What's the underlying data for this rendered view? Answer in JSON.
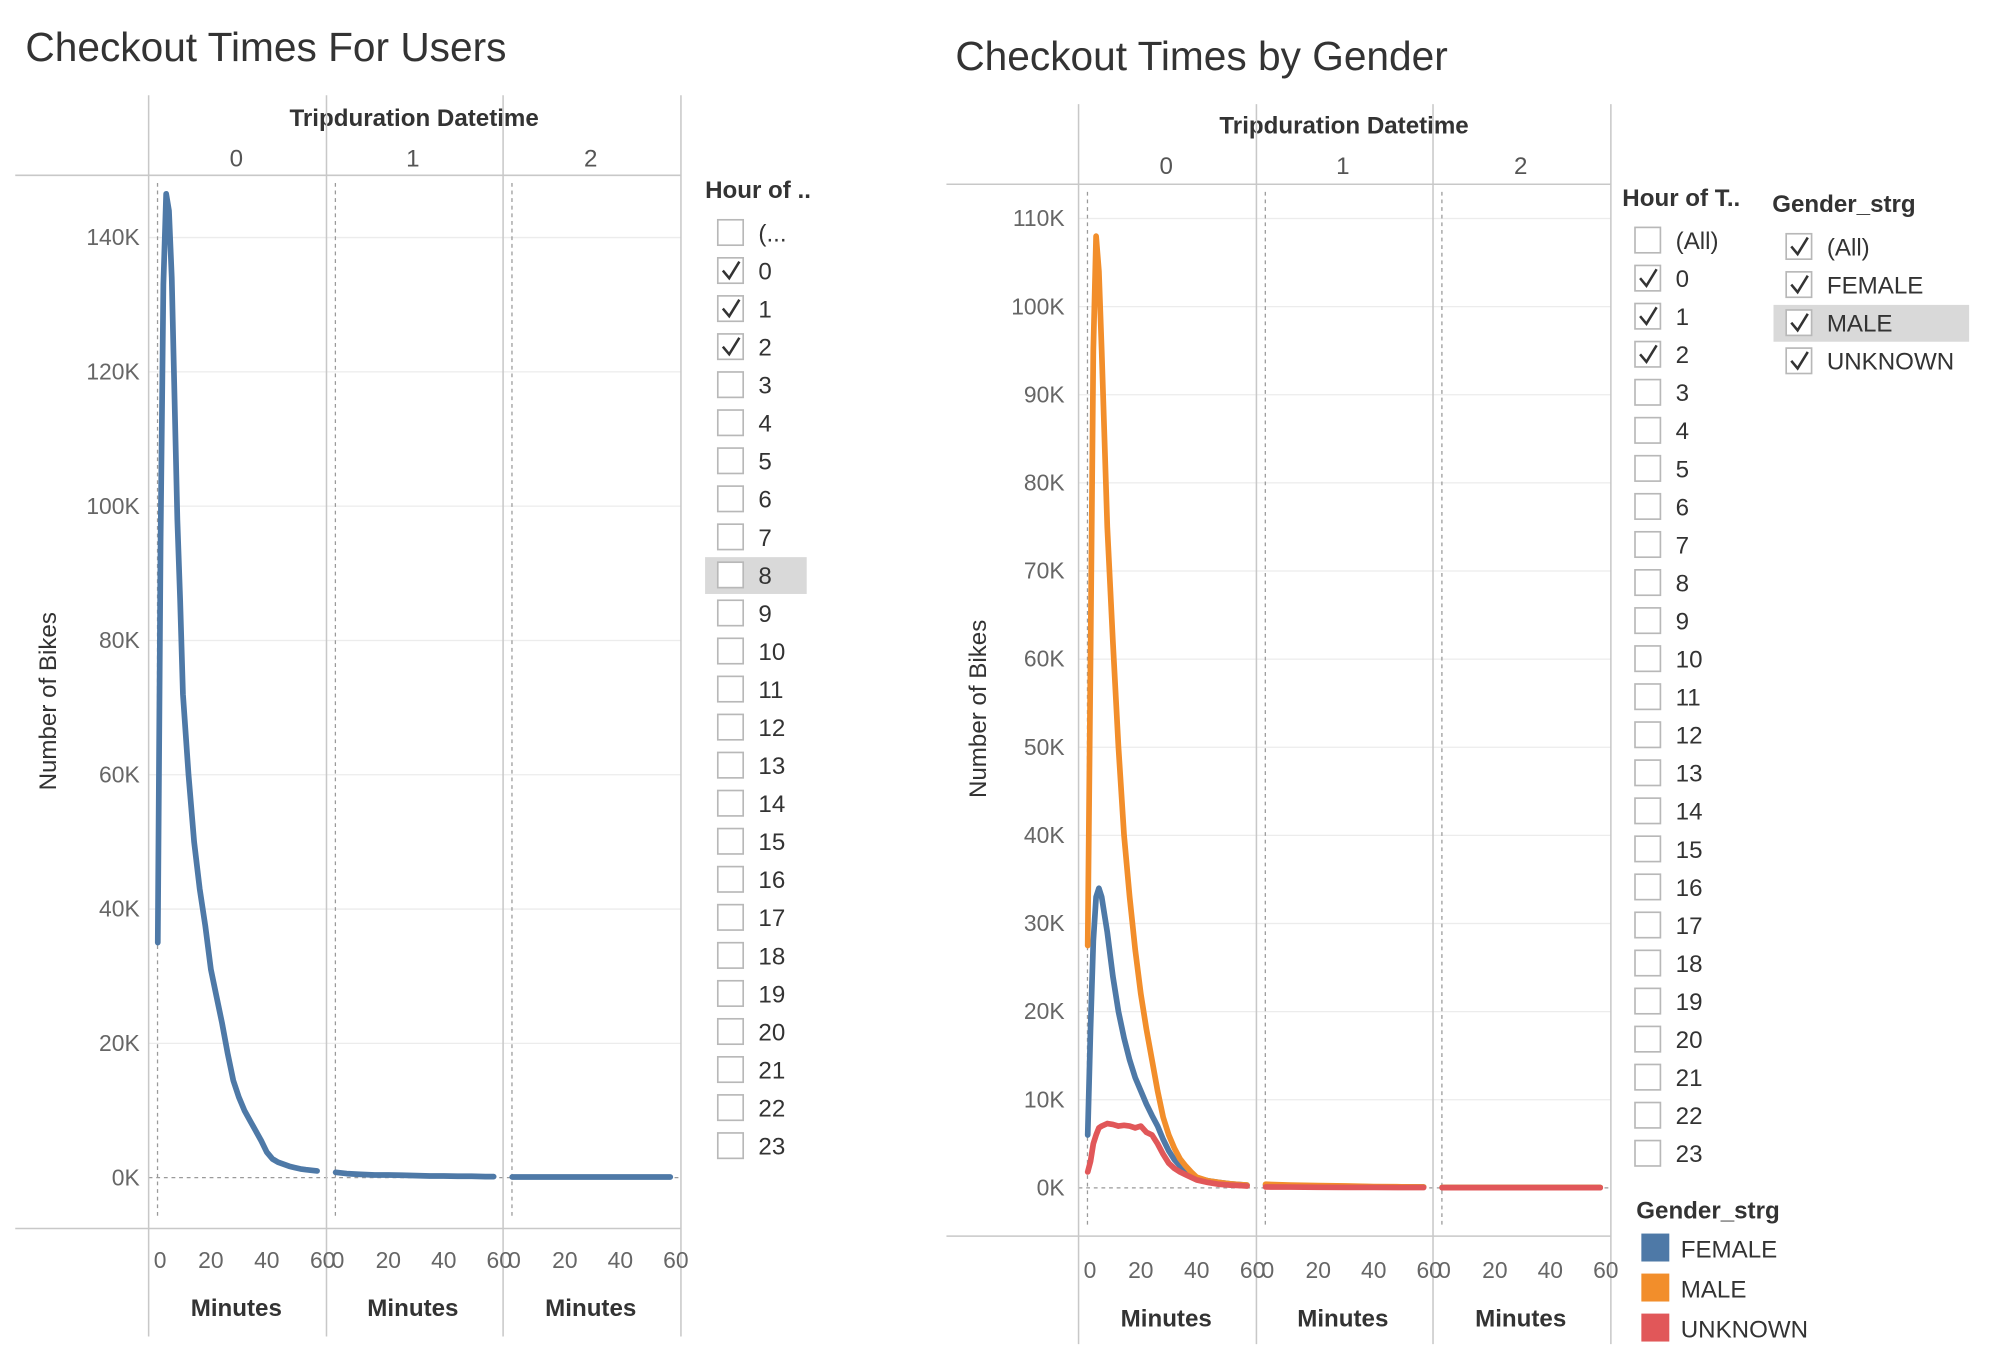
{
  "chart_data": [
    {
      "type": "line",
      "title": "Checkout Times For Users",
      "column_header": "Tripduration Datetime",
      "panes": [
        "0",
        "1",
        "2"
      ],
      "xlabel": "Minutes",
      "ylabel": "Number of Bikes",
      "xticks": [
        "0",
        "20",
        "40",
        "60"
      ],
      "yticks": [
        "0K",
        "20K",
        "40K",
        "60K",
        "80K",
        "100K",
        "120K",
        "140K"
      ],
      "ylim": [
        0,
        150000
      ],
      "xlim": [
        0,
        60
      ],
      "series": [
        {
          "color": "#4e79a7",
          "panes": [
            {
              "x": [
                1,
                2,
                3,
                4,
                5,
                6,
                7,
                8,
                9,
                10,
                12,
                14,
                16,
                18,
                20,
                22,
                24,
                26,
                28,
                30,
                32,
                34,
                36,
                38,
                40,
                42,
                44,
                46,
                48,
                50,
                52,
                54,
                56,
                58
              ],
              "y": [
                35000,
                95000,
                133000,
                146500,
                144000,
                134000,
                116000,
                98000,
                86000,
                72000,
                60000,
                50000,
                43000,
                37500,
                31000,
                27000,
                23000,
                18500,
                14500,
                12000,
                10000,
                8500,
                7000,
                5500,
                3800,
                2800,
                2300,
                2000,
                1700,
                1500,
                1300,
                1200,
                1100,
                1000
              ]
            },
            {
              "x": [
                1,
                5,
                10,
                15,
                20,
                25,
                30,
                35,
                40,
                45,
                50,
                55,
                58
              ],
              "y": [
                800,
                600,
                500,
                400,
                400,
                350,
                300,
                250,
                250,
                200,
                200,
                150,
                150
              ]
            },
            {
              "x": [
                1,
                10,
                20,
                30,
                40,
                50,
                58
              ],
              "y": [
                100,
                100,
                100,
                100,
                100,
                100,
                100
              ]
            }
          ]
        }
      ],
      "filter": {
        "title": "Hour of ..",
        "items": [
          {
            "label": "(...",
            "checked": false,
            "highlighted": false
          },
          {
            "label": "0",
            "checked": true,
            "highlighted": false
          },
          {
            "label": "1",
            "checked": true,
            "highlighted": false
          },
          {
            "label": "2",
            "checked": true,
            "highlighted": false
          },
          {
            "label": "3",
            "checked": false,
            "highlighted": false
          },
          {
            "label": "4",
            "checked": false,
            "highlighted": false
          },
          {
            "label": "5",
            "checked": false,
            "highlighted": false
          },
          {
            "label": "6",
            "checked": false,
            "highlighted": false
          },
          {
            "label": "7",
            "checked": false,
            "highlighted": false
          },
          {
            "label": "8",
            "checked": false,
            "highlighted": true
          },
          {
            "label": "9",
            "checked": false,
            "highlighted": false
          },
          {
            "label": "10",
            "checked": false,
            "highlighted": false
          },
          {
            "label": "11",
            "checked": false,
            "highlighted": false
          },
          {
            "label": "12",
            "checked": false,
            "highlighted": false
          },
          {
            "label": "13",
            "checked": false,
            "highlighted": false
          },
          {
            "label": "14",
            "checked": false,
            "highlighted": false
          },
          {
            "label": "15",
            "checked": false,
            "highlighted": false
          },
          {
            "label": "16",
            "checked": false,
            "highlighted": false
          },
          {
            "label": "17",
            "checked": false,
            "highlighted": false
          },
          {
            "label": "18",
            "checked": false,
            "highlighted": false
          },
          {
            "label": "19",
            "checked": false,
            "highlighted": false
          },
          {
            "label": "20",
            "checked": false,
            "highlighted": false
          },
          {
            "label": "21",
            "checked": false,
            "highlighted": false
          },
          {
            "label": "22",
            "checked": false,
            "highlighted": false
          },
          {
            "label": "23",
            "checked": false,
            "highlighted": false
          }
        ]
      }
    },
    {
      "type": "line",
      "title": "Checkout Times by Gender",
      "column_header": "Tripduration Datetime",
      "panes": [
        "0",
        "1",
        "2"
      ],
      "xlabel": "Minutes",
      "ylabel": "Number of Bikes",
      "xticks": [
        "0",
        "20",
        "40",
        "60"
      ],
      "yticks": [
        "0K",
        "10K",
        "20K",
        "30K",
        "40K",
        "50K",
        "60K",
        "70K",
        "80K",
        "90K",
        "100K",
        "110K"
      ],
      "ylim": [
        0,
        110000
      ],
      "xlim": [
        0,
        60
      ],
      "series": [
        {
          "name": "FEMALE",
          "color": "#4e79a7",
          "panes": [
            {
              "x": [
                1,
                2,
                3,
                4,
                5,
                6,
                7,
                8,
                10,
                12,
                14,
                16,
                18,
                20,
                22,
                24,
                26,
                28,
                30,
                32,
                34,
                36,
                38,
                40,
                44,
                48,
                52,
                56,
                58
              ],
              "y": [
                6000,
                18000,
                28000,
                33000,
                34000,
                33000,
                31000,
                29000,
                24000,
                20000,
                17000,
                14500,
                12500,
                11000,
                9500,
                8200,
                7000,
                5500,
                4200,
                3200,
                2500,
                1900,
                1500,
                1100,
                800,
                600,
                450,
                350,
                300
              ]
            },
            {
              "x": [
                1,
                10,
                20,
                30,
                40,
                50,
                58
              ],
              "y": [
                300,
                250,
                200,
                150,
                120,
                100,
                100
              ]
            },
            {
              "x": [
                1,
                10,
                20,
                30,
                40,
                50,
                58
              ],
              "y": [
                50,
                50,
                50,
                50,
                50,
                50,
                50
              ]
            }
          ]
        },
        {
          "name": "MALE",
          "color": "#f28e2b",
          "panes": [
            {
              "x": [
                1,
                2,
                3,
                4,
                5,
                6,
                7,
                8,
                10,
                12,
                14,
                16,
                18,
                20,
                22,
                24,
                26,
                28,
                30,
                32,
                34,
                36,
                38,
                40,
                44,
                48,
                52,
                56,
                58
              ],
              "y": [
                27500,
                60000,
                95000,
                108000,
                104000,
                95000,
                85000,
                75000,
                62000,
                50000,
                40000,
                33000,
                27000,
                22000,
                18000,
                14500,
                11000,
                8000,
                6000,
                4500,
                3300,
                2500,
                1800,
                1200,
                800,
                600,
                450,
                350,
                300
              ]
            },
            {
              "x": [
                1,
                10,
                20,
                30,
                40,
                50,
                58
              ],
              "y": [
                400,
                300,
                250,
                200,
                150,
                120,
                100
              ]
            },
            {
              "x": [
                1,
                10,
                20,
                30,
                40,
                50,
                58
              ],
              "y": [
                50,
                50,
                50,
                50,
                50,
                50,
                50
              ]
            }
          ]
        },
        {
          "name": "UNKNOWN",
          "color": "#e15759",
          "panes": [
            {
              "x": [
                1,
                2,
                3,
                4,
                5,
                6,
                8,
                10,
                12,
                14,
                16,
                18,
                20,
                22,
                24,
                26,
                28,
                30,
                32,
                34,
                36,
                38,
                40,
                44,
                48,
                52,
                56,
                58
              ],
              "y": [
                1800,
                3000,
                5000,
                6000,
                6800,
                7000,
                7300,
                7200,
                7000,
                7100,
                7000,
                6800,
                7000,
                6300,
                6000,
                5000,
                3800,
                2800,
                2200,
                1800,
                1500,
                1200,
                900,
                600,
                400,
                300,
                250,
                200
              ]
            },
            {
              "x": [
                1,
                10,
                20,
                30,
                40,
                50,
                58
              ],
              "y": [
                100,
                80,
                60,
                50,
                40,
                30,
                30
              ]
            },
            {
              "x": [
                1,
                10,
                20,
                30,
                40,
                50,
                58
              ],
              "y": [
                20,
                20,
                20,
                20,
                20,
                20,
                20
              ]
            }
          ]
        }
      ],
      "hour_filter": {
        "title": "Hour of T..",
        "items": [
          {
            "label": "(All)",
            "checked": false,
            "highlighted": false
          },
          {
            "label": "0",
            "checked": true,
            "highlighted": false
          },
          {
            "label": "1",
            "checked": true,
            "highlighted": false
          },
          {
            "label": "2",
            "checked": true,
            "highlighted": false
          },
          {
            "label": "3",
            "checked": false,
            "highlighted": false
          },
          {
            "label": "4",
            "checked": false,
            "highlighted": false
          },
          {
            "label": "5",
            "checked": false,
            "highlighted": false
          },
          {
            "label": "6",
            "checked": false,
            "highlighted": false
          },
          {
            "label": "7",
            "checked": false,
            "highlighted": false
          },
          {
            "label": "8",
            "checked": false,
            "highlighted": false
          },
          {
            "label": "9",
            "checked": false,
            "highlighted": false
          },
          {
            "label": "10",
            "checked": false,
            "highlighted": false
          },
          {
            "label": "11",
            "checked": false,
            "highlighted": false
          },
          {
            "label": "12",
            "checked": false,
            "highlighted": false
          },
          {
            "label": "13",
            "checked": false,
            "highlighted": false
          },
          {
            "label": "14",
            "checked": false,
            "highlighted": false
          },
          {
            "label": "15",
            "checked": false,
            "highlighted": false
          },
          {
            "label": "16",
            "checked": false,
            "highlighted": false
          },
          {
            "label": "17",
            "checked": false,
            "highlighted": false
          },
          {
            "label": "18",
            "checked": false,
            "highlighted": false
          },
          {
            "label": "19",
            "checked": false,
            "highlighted": false
          },
          {
            "label": "20",
            "checked": false,
            "highlighted": false
          },
          {
            "label": "21",
            "checked": false,
            "highlighted": false
          },
          {
            "label": "22",
            "checked": false,
            "highlighted": false
          },
          {
            "label": "23",
            "checked": false,
            "highlighted": false
          }
        ]
      },
      "gender_filter": {
        "title": "Gender_strg",
        "items": [
          {
            "label": "(All)",
            "checked": true,
            "highlighted": false
          },
          {
            "label": "FEMALE",
            "checked": true,
            "highlighted": false
          },
          {
            "label": "MALE",
            "checked": true,
            "highlighted": true
          },
          {
            "label": "UNKNOWN",
            "checked": true,
            "highlighted": false
          }
        ]
      },
      "legend": {
        "title": "Gender_strg",
        "items": [
          {
            "label": "FEMALE",
            "color": "#4e79a7"
          },
          {
            "label": "MALE",
            "color": "#f28e2b"
          },
          {
            "label": "UNKNOWN",
            "color": "#e15759"
          }
        ]
      }
    }
  ]
}
